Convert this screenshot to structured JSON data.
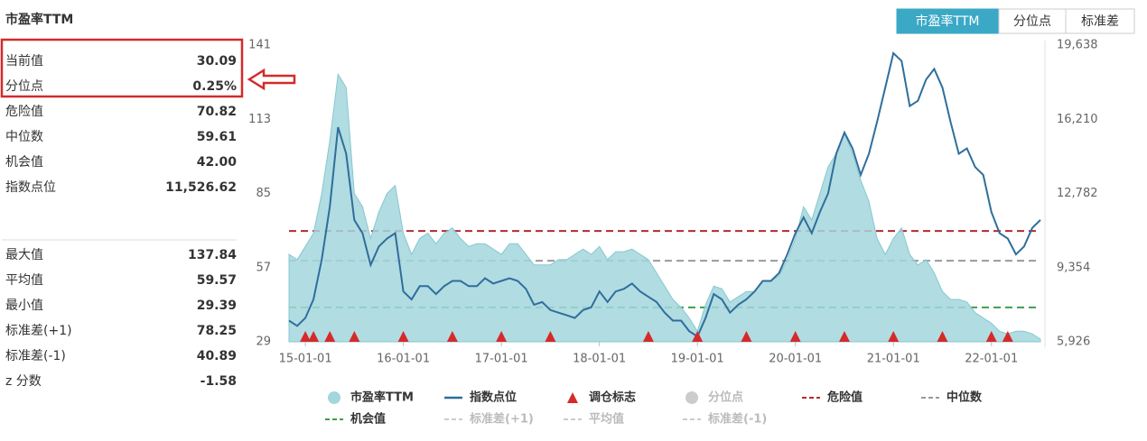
{
  "panel": {
    "title": "市盈率TTM",
    "rows_top": [
      {
        "label": "当前值",
        "value": "30.09"
      },
      {
        "label": "分位点",
        "value": "0.25%"
      },
      {
        "label": "危险值",
        "value": "70.82"
      },
      {
        "label": "中位数",
        "value": "59.61"
      },
      {
        "label": "机会值",
        "value": "42.00"
      },
      {
        "label": "指数点位",
        "value": "11,526.62"
      }
    ],
    "rows_bottom": [
      {
        "label": "最大值",
        "value": "137.84"
      },
      {
        "label": "平均值",
        "value": "59.57"
      },
      {
        "label": "最小值",
        "value": "29.39"
      },
      {
        "label": "标准差(+1)",
        "value": "78.25"
      },
      {
        "label": "标准差(-1)",
        "value": "40.89"
      },
      {
        "label": "z 分数",
        "value": "-1.58"
      }
    ]
  },
  "tabs": [
    "市盈率TTM",
    "分位点",
    "标准差"
  ],
  "chart_data": {
    "type": "area-line",
    "x": [
      "14-11-01",
      "14-12-01",
      "15-01-01",
      "15-02-01",
      "15-03-01",
      "15-04-01",
      "15-05-01",
      "15-06-01",
      "15-07-01",
      "15-08-01",
      "15-09-01",
      "15-10-01",
      "15-11-01",
      "15-12-01",
      "16-01-01",
      "16-02-01",
      "16-03-01",
      "16-04-01",
      "16-05-01",
      "16-06-01",
      "16-07-01",
      "16-08-01",
      "16-09-01",
      "16-10-01",
      "16-11-01",
      "16-12-01",
      "17-01-01",
      "17-02-01",
      "17-03-01",
      "17-04-01",
      "17-05-01",
      "17-06-01",
      "17-07-01",
      "17-08-01",
      "17-09-01",
      "17-10-01",
      "17-11-01",
      "17-12-01",
      "18-01-01",
      "18-02-01",
      "18-03-01",
      "18-04-01",
      "18-05-01",
      "18-06-01",
      "18-07-01",
      "18-08-01",
      "18-09-01",
      "18-10-01",
      "18-11-01",
      "18-12-01",
      "19-01-01",
      "19-02-01",
      "19-03-01",
      "19-04-01",
      "19-05-01",
      "19-06-01",
      "19-07-01",
      "19-08-01",
      "19-09-01",
      "19-10-01",
      "19-11-01",
      "19-12-01",
      "20-01-01",
      "20-02-01",
      "20-03-01",
      "20-04-01",
      "20-05-01",
      "20-06-01",
      "20-07-01",
      "20-08-01",
      "20-09-01",
      "20-10-01",
      "20-11-01",
      "20-12-01",
      "21-01-01",
      "21-02-01",
      "21-03-01",
      "21-04-01",
      "21-05-01",
      "21-06-01",
      "21-07-01",
      "21-08-01",
      "21-09-01",
      "21-10-01",
      "21-11-01",
      "21-12-01",
      "22-01-01",
      "22-02-01",
      "22-03-01",
      "22-04-01",
      "22-05-01",
      "22-06-01",
      "22-07-01"
    ],
    "xlim": [
      "14-11-01",
      "22-07-01"
    ],
    "xticks": [
      "15-01-01",
      "16-01-01",
      "17-01-01",
      "18-01-01",
      "19-01-01",
      "20-01-01",
      "21-01-01",
      "22-01-01"
    ],
    "ylim": [
      29,
      141
    ],
    "yticks": [
      29,
      57,
      85,
      113,
      141
    ],
    "y2lim": [
      5926,
      19638
    ],
    "y2ticks": [
      {
        "value": 5926,
        "label": "5,926"
      },
      {
        "value": 9354,
        "label": "9,354"
      },
      {
        "value": 12782,
        "label": "12,782"
      },
      {
        "value": 16210,
        "label": "16,210"
      },
      {
        "value": 19638,
        "label": "19,638"
      }
    ],
    "series": [
      {
        "name": "市盈率TTM",
        "color": "#a3d6dd",
        "values": [
          62,
          60,
          65,
          70,
          85,
          105,
          130,
          125,
          85,
          80,
          68,
          78,
          85,
          88,
          70,
          62,
          68,
          70,
          66,
          70,
          72,
          68,
          65,
          66,
          66,
          64,
          62,
          66,
          66,
          62,
          58,
          58,
          58,
          60,
          60,
          62,
          64,
          62,
          65,
          60,
          63,
          63,
          64,
          62,
          60,
          55,
          50,
          45,
          42,
          38,
          33,
          43,
          50,
          49,
          44,
          46,
          48,
          48,
          52,
          52,
          54,
          60,
          68,
          80,
          75,
          85,
          95,
          100,
          108,
          100,
          90,
          82,
          68,
          62,
          68,
          72,
          62,
          58,
          60,
          55,
          48,
          45,
          45,
          44,
          40,
          38,
          36,
          33,
          32,
          33,
          33,
          32,
          30
        ]
      },
      {
        "name": "指数点位",
        "color": "#2f6e9b",
        "axis": "y2",
        "values": [
          6905,
          6660,
          7028,
          7884,
          9720,
          12168,
          15840,
          14616,
          11556,
          10944,
          9476,
          10332,
          10700,
          10944,
          8252,
          7884,
          8496,
          8496,
          8129,
          8496,
          8741,
          8741,
          8496,
          8496,
          8864,
          8619,
          8741,
          8864,
          8741,
          8374,
          7640,
          7762,
          7395,
          7272,
          7150,
          7028,
          7395,
          7517,
          8252,
          7762,
          8252,
          8374,
          8619,
          8252,
          8007,
          7762,
          7272,
          6905,
          6905,
          6416,
          6171,
          7028,
          8129,
          7884,
          7272,
          7640,
          7884,
          8252,
          8741,
          8741,
          9108,
          9965,
          10944,
          11679,
          10944,
          11924,
          12780,
          14616,
          15596,
          14861,
          13637,
          14616,
          16085,
          17676,
          19268,
          18902,
          16820,
          17064,
          18044,
          18533,
          17676,
          16085,
          14616,
          14861,
          14004,
          13637,
          11924,
          10944,
          10700,
          9965,
          10332,
          11189,
          11556
        ]
      }
    ],
    "markers": {
      "name": "调仓标志",
      "color": "#d62a2a",
      "x": [
        "15-01-01",
        "15-02-01",
        "15-04-01",
        "15-07-01",
        "16-01-01",
        "16-07-01",
        "17-01-01",
        "17-07-01",
        "18-07-01",
        "19-01-01",
        "19-07-01",
        "20-01-01",
        "20-07-01",
        "21-01-01",
        "21-07-01",
        "22-01-01",
        "22-03-01"
      ]
    },
    "ref_lines": [
      {
        "name": "危险值",
        "value": 70.82,
        "color": "#b52a2e"
      },
      {
        "name": "中位数",
        "value": 59.61,
        "color": "#999999"
      },
      {
        "name": "机会值",
        "value": 42.0,
        "color": "#3f9e4d"
      }
    ],
    "inactive_legend": [
      {
        "name": "分位点",
        "symbol": "dot"
      },
      {
        "name": "标准差(+1)",
        "symbol": "dash"
      },
      {
        "name": "平均值",
        "symbol": "dash"
      },
      {
        "name": "标准差(-1)",
        "symbol": "dash"
      }
    ]
  }
}
